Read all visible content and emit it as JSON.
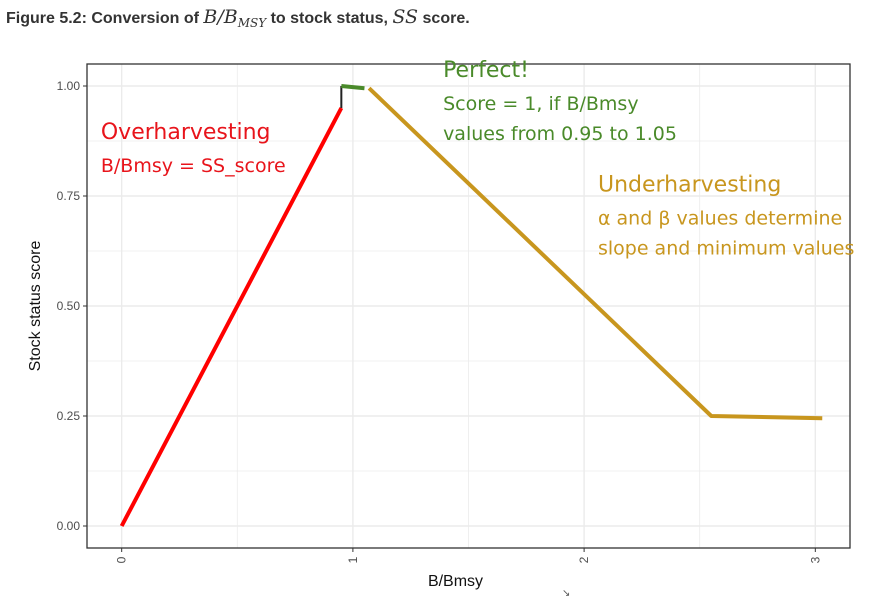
{
  "caption": {
    "prefix": "Figure 5.2: Conversion of ",
    "math1": "B/B",
    "math1_sub": "MSY",
    "middle": " to stock status, ",
    "math2": "SS",
    "suffix": " score."
  },
  "chart_data": {
    "type": "line",
    "xlabel": "B/Bmsy",
    "ylabel": "Stock status score",
    "xlim": [
      -0.15,
      3.15
    ],
    "ylim": [
      -0.05,
      1.05
    ],
    "x_ticks": [
      0,
      1,
      2,
      3
    ],
    "x_tick_labels": [
      "0",
      "1",
      "2",
      "3"
    ],
    "y_ticks": [
      0,
      0.25,
      0.5,
      0.75,
      1
    ],
    "y_tick_labels": [
      "0.00",
      "0.25",
      "0.50",
      "0.75",
      "1.00"
    ],
    "grid": true,
    "series": [
      {
        "color": "#ff0000",
        "x": [
          0,
          0.95
        ],
        "y": [
          0,
          0.95
        ]
      },
      {
        "color": "#222222",
        "x": [
          0.95,
          0.95
        ],
        "y": [
          0.95,
          1.0
        ]
      },
      {
        "color": "#4a8a2a",
        "x": [
          0.95,
          1.05
        ],
        "y": [
          1.0,
          0.995
        ]
      },
      {
        "color": "#c8961e",
        "x": [
          1.07,
          2.55,
          3.03
        ],
        "y": [
          0.995,
          0.25,
          0.245
        ]
      }
    ],
    "annotations": [
      {
        "lines": [
          "Perfect!",
          "Score = 1, if B/Bmsy",
          "values from 0.95 to 1.05"
        ],
        "color": "#4a8a2a"
      },
      {
        "lines": [
          "Overharvesting",
          "B/Bmsy = SS_score"
        ],
        "color": "#e8141b"
      },
      {
        "lines": [
          "Underharvesting",
          "α and β values determine",
          "slope and minimum values"
        ],
        "color": "#c8961e"
      }
    ]
  },
  "colors": {
    "panel_border": "#333333",
    "grid": "#ebebeb",
    "tick_label": "#4d4d4d"
  }
}
